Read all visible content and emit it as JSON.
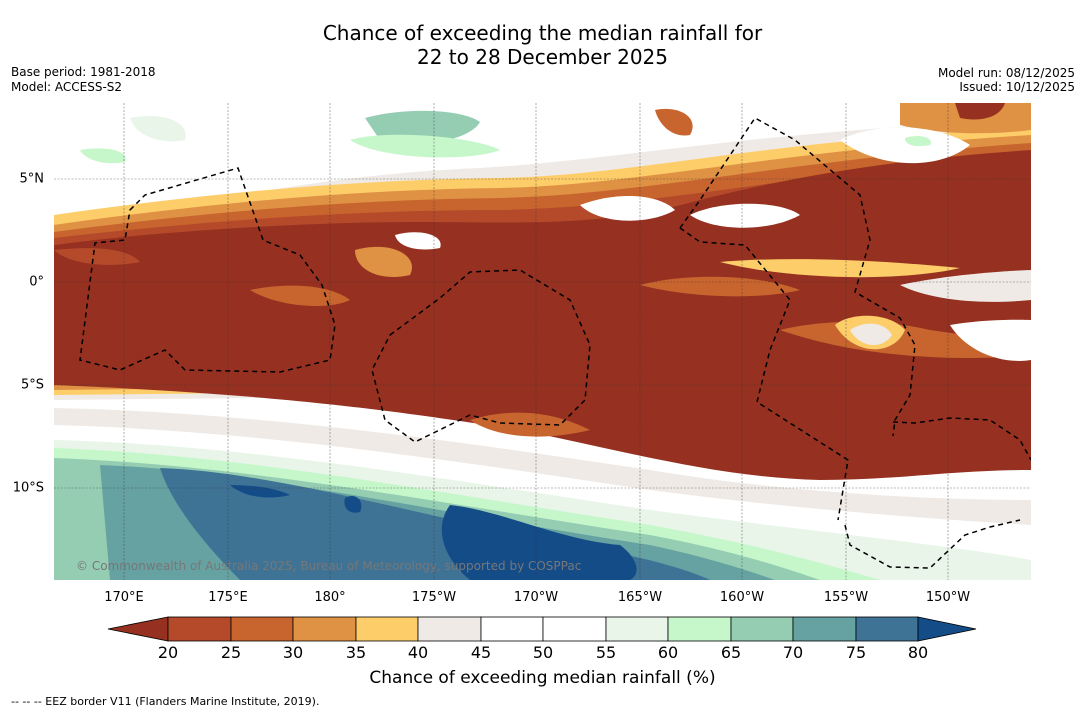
{
  "title": {
    "line1": "Chance of exceeding the median rainfall for",
    "line2": "22 to 28 December 2025"
  },
  "meta": {
    "base_period": "Base period: 1981-2018",
    "model": "Model: ACCESS-S2",
    "model_run": "Model run: 08/12/2025",
    "issued": "Issued: 10/12/2025"
  },
  "credit": "© Commonwealth of Australia 2025, Bureau of Meteorology, supported by COSPPac",
  "axes": {
    "lon_labels": [
      "170°E",
      "175°E",
      "180°",
      "175°W",
      "170°W",
      "165°W",
      "160°W",
      "155°W",
      "150°W"
    ],
    "lat_labels": [
      "5°N",
      "0°",
      "5°S",
      "10°S"
    ]
  },
  "colorbar": {
    "label": "Chance of exceeding median rainfall (%)",
    "ticks": [
      "20",
      "25",
      "30",
      "35",
      "40",
      "45",
      "50",
      "55",
      "60",
      "65",
      "70",
      "75",
      "80"
    ],
    "colors": [
      "#963121",
      "#b54a2b",
      "#c8652f",
      "#df9243",
      "#fdcd6a",
      "#efeae6",
      "#ffffff",
      "#ffffff",
      "#e8f5e8",
      "#c6f7cb",
      "#95cdb3",
      "#66a2a2",
      "#3e7396",
      "#144c88"
    ]
  },
  "legend_footer": "--  --  -- EEZ border V11 (Flanders Marine Institute, 2019)."
}
